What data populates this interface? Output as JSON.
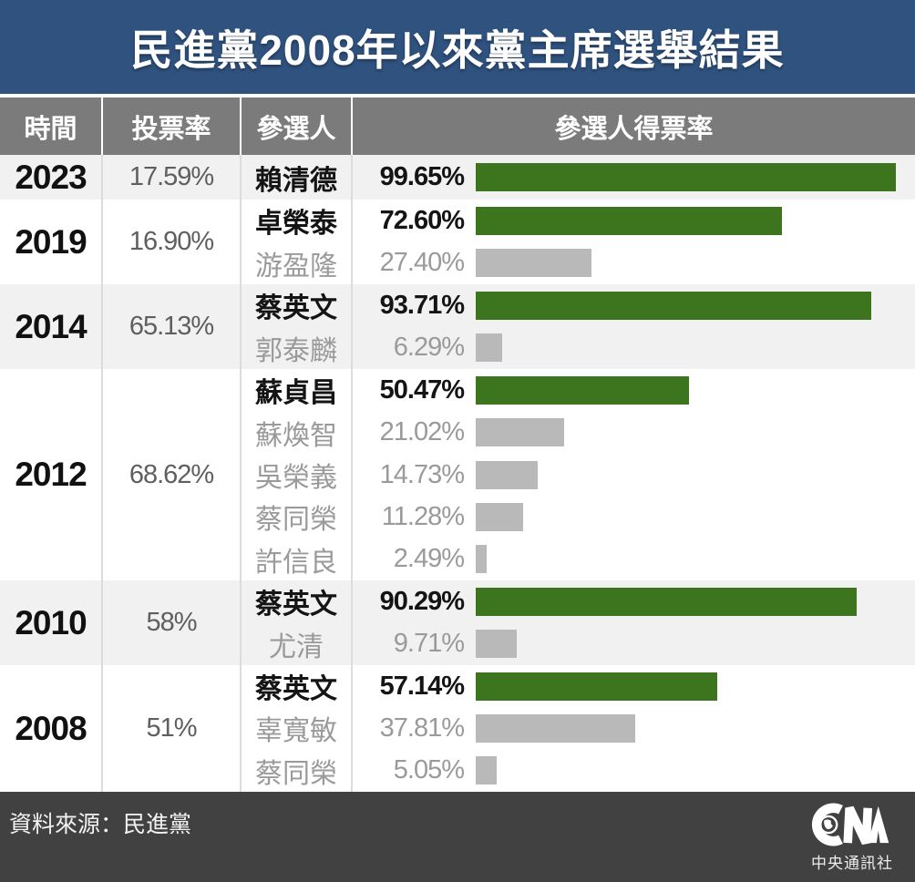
{
  "title": "民進黨2008年以來黨主席選舉結果",
  "header": {
    "time": "時間",
    "turnout": "投票率",
    "candidate": "參選人",
    "vote_share": "參選人得票率"
  },
  "footer": {
    "source": "資料來源：民進黨",
    "logo_text": "CNA",
    "agency": "中央通訊社"
  },
  "colors": {
    "title_bg": "#2F527E",
    "header_bg": "#7B7B7B",
    "row_alt_bg": "#F1F1F1",
    "row_bg": "#FFFFFF",
    "winner_bar": "#3D751E",
    "loser_bar": "#B9B9B9",
    "winner_text": "#141414",
    "loser_text": "#9A9A9A",
    "footer_bg": "#414141"
  },
  "chart_data": {
    "type": "bar",
    "title": "民進黨2008年以來黨主席選舉結果",
    "columns": [
      "時間",
      "投票率",
      "參選人",
      "參選人得票率"
    ],
    "xlabel": "參選人得票率",
    "xlim": [
      0,
      100
    ],
    "grid": false,
    "legend": "none",
    "groups": [
      {
        "year": "2023",
        "turnout": "17.59%",
        "candidates": [
          {
            "name": "賴清德",
            "share": 99.65,
            "share_label": "99.65%",
            "winner": true
          }
        ]
      },
      {
        "year": "2019",
        "turnout": "16.90%",
        "candidates": [
          {
            "name": "卓榮泰",
            "share": 72.6,
            "share_label": "72.60%",
            "winner": true
          },
          {
            "name": "游盈隆",
            "share": 27.4,
            "share_label": "27.40%",
            "winner": false
          }
        ]
      },
      {
        "year": "2014",
        "turnout": "65.13%",
        "candidates": [
          {
            "name": "蔡英文",
            "share": 93.71,
            "share_label": "93.71%",
            "winner": true
          },
          {
            "name": "郭泰麟",
            "share": 6.29,
            "share_label": "6.29%",
            "winner": false
          }
        ]
      },
      {
        "year": "2012",
        "turnout": "68.62%",
        "candidates": [
          {
            "name": "蘇貞昌",
            "share": 50.47,
            "share_label": "50.47%",
            "winner": true
          },
          {
            "name": "蘇煥智",
            "share": 21.02,
            "share_label": "21.02%",
            "winner": false
          },
          {
            "name": "吳榮義",
            "share": 14.73,
            "share_label": "14.73%",
            "winner": false
          },
          {
            "name": "蔡同榮",
            "share": 11.28,
            "share_label": "11.28%",
            "winner": false
          },
          {
            "name": "許信良",
            "share": 2.49,
            "share_label": "2.49%",
            "winner": false
          }
        ]
      },
      {
        "year": "2010",
        "turnout": "58%",
        "candidates": [
          {
            "name": "蔡英文",
            "share": 90.29,
            "share_label": "90.29%",
            "winner": true
          },
          {
            "name": "尤清",
            "share": 9.71,
            "share_label": "9.71%",
            "winner": false
          }
        ]
      },
      {
        "year": "2008",
        "turnout": "51%",
        "candidates": [
          {
            "name": "蔡英文",
            "share": 57.14,
            "share_label": "57.14%",
            "winner": true
          },
          {
            "name": "辜寬敏",
            "share": 37.81,
            "share_label": "37.81%",
            "winner": false
          },
          {
            "name": "蔡同榮",
            "share": 5.05,
            "share_label": "5.05%",
            "winner": false
          }
        ]
      }
    ]
  }
}
